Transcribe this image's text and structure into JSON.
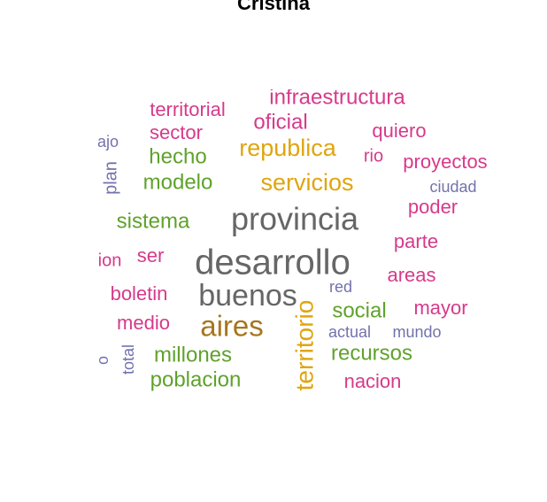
{
  "chart_data": {
    "type": "wordcloud",
    "title": "Cristina",
    "colors": {
      "pink": "#d63a8a",
      "green": "#5fa22b",
      "gold": "#e0a50e",
      "gray": "#666666",
      "purple": "#7272ad",
      "brown": "#a6761d"
    },
    "words": [
      {
        "text": "desarrollo",
        "color": "gray"
      },
      {
        "text": "provincia",
        "color": "gray"
      },
      {
        "text": "buenos",
        "color": "gray"
      },
      {
        "text": "aires",
        "color": "brown"
      },
      {
        "text": "servicios",
        "color": "gold"
      },
      {
        "text": "republica",
        "color": "gold"
      },
      {
        "text": "territorio",
        "color": "gold"
      },
      {
        "text": "modelo",
        "color": "green"
      },
      {
        "text": "social",
        "color": "green"
      },
      {
        "text": "millones",
        "color": "green"
      },
      {
        "text": "recursos",
        "color": "green"
      },
      {
        "text": "poblacion",
        "color": "green"
      },
      {
        "text": "sistema",
        "color": "green"
      },
      {
        "text": "hecho",
        "color": "green"
      },
      {
        "text": "oficial",
        "color": "pink"
      },
      {
        "text": "territorial",
        "color": "pink"
      },
      {
        "text": "sector",
        "color": "pink"
      },
      {
        "text": "quiero",
        "color": "pink"
      },
      {
        "text": "proyectos",
        "color": "pink"
      },
      {
        "text": "poder",
        "color": "pink"
      },
      {
        "text": "parte",
        "color": "pink"
      },
      {
        "text": "areas",
        "color": "pink"
      },
      {
        "text": "mayor",
        "color": "pink"
      },
      {
        "text": "boletin",
        "color": "pink"
      },
      {
        "text": "medio",
        "color": "pink"
      },
      {
        "text": "ser",
        "color": "pink"
      },
      {
        "text": "ion",
        "color": "pink"
      },
      {
        "text": "rio",
        "color": "pink"
      },
      {
        "text": "nacion",
        "color": "pink"
      },
      {
        "text": "infraestructura",
        "color": "pink"
      },
      {
        "text": "ciudad",
        "color": "purple"
      },
      {
        "text": "red",
        "color": "purple"
      },
      {
        "text": "actual",
        "color": "purple"
      },
      {
        "text": "mundo",
        "color": "purple"
      },
      {
        "text": "ajo",
        "color": "purple"
      },
      {
        "text": "plan",
        "color": "purple"
      },
      {
        "text": "total",
        "color": "purple"
      },
      {
        "text": "o",
        "color": "purple"
      }
    ]
  }
}
